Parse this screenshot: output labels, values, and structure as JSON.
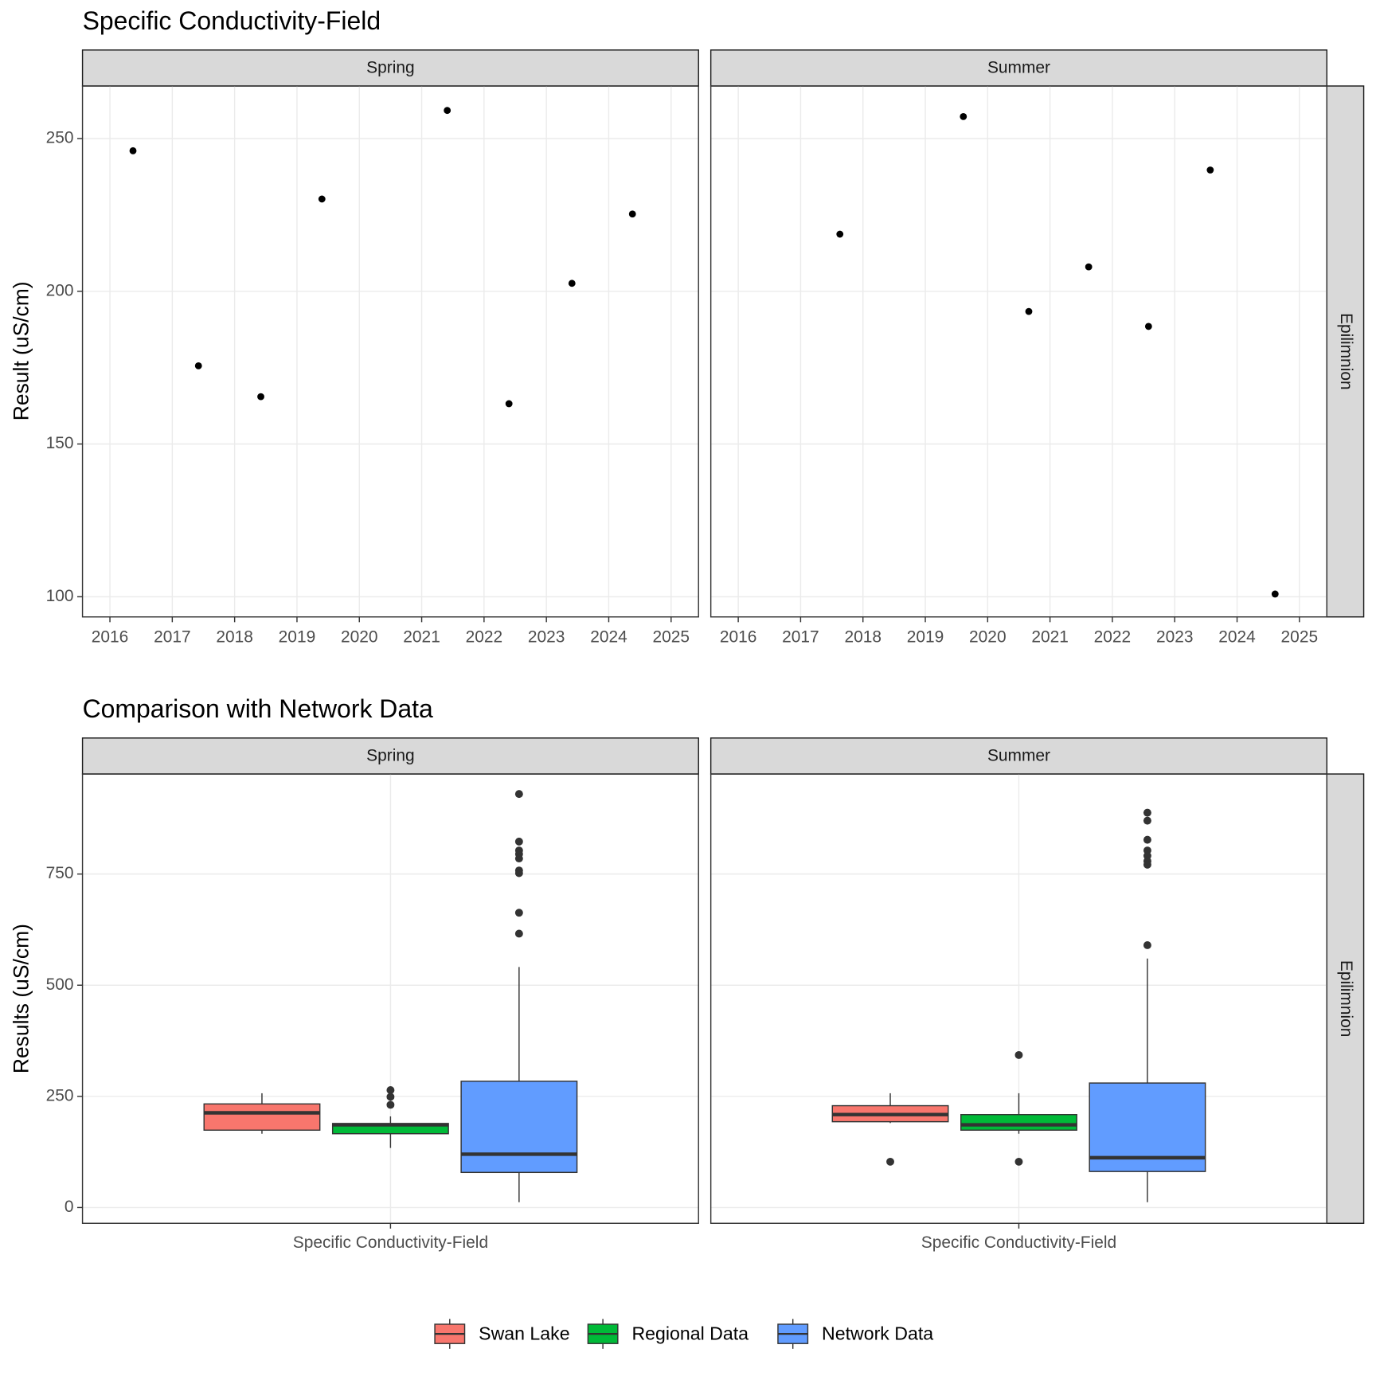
{
  "chart_data": [
    {
      "type": "scatter",
      "title": "Specific Conductivity-Field",
      "y_label": "Result (uS/cm)",
      "row_label": "Epilimnion",
      "xlim": [
        2015.56,
        2025.44
      ],
      "xticks": [
        2016,
        2017,
        2018,
        2019,
        2020,
        2021,
        2022,
        2023,
        2024,
        2025
      ],
      "ylim": [
        93.4,
        267.2
      ],
      "yticks": [
        100,
        150,
        200,
        250
      ],
      "grid": true,
      "color": "#000000",
      "facets": [
        {
          "name": "Spring",
          "x": [
            2016.37,
            2017.42,
            2018.42,
            2019.4,
            2021.41,
            2022.4,
            2023.41,
            2024.38
          ],
          "values": [
            246,
            175.6,
            165.5,
            230.2,
            259.2,
            163.2,
            202.6,
            225.3
          ]
        },
        {
          "name": "Summer",
          "x": [
            2017.63,
            2019.61,
            2020.66,
            2021.62,
            2022.58,
            2023.57,
            2024.61
          ],
          "values": [
            218.7,
            257.2,
            193.4,
            208,
            188.5,
            239.7,
            100.9
          ]
        }
      ]
    },
    {
      "type": "box",
      "title": "Comparison with Network Data",
      "y_label": "Results (uS/cm)",
      "row_label": "Epilimnion",
      "category": "Specific Conductivity-Field",
      "facets": [
        "Spring",
        "Summer"
      ],
      "ylim": [
        -35.5,
        975
      ],
      "yticks": [
        0,
        250,
        500,
        750
      ],
      "grid": true,
      "legend": "bottom",
      "series": [
        {
          "name": "Swan Lake",
          "color": "#F8766D",
          "boxes": [
            {
              "min": 166,
              "q1": 174,
              "median": 213,
              "q3": 233,
              "max": 257,
              "outliers": []
            },
            {
              "min": 190,
              "q1": 193,
              "median": 209,
              "q3": 229,
              "max": 257,
              "outliers": [
                103
              ]
            }
          ]
        },
        {
          "name": "Regional Data",
          "color": "#00BA38",
          "boxes": [
            {
              "min": 134,
              "q1": 166,
              "median": 186,
              "q3": 189,
              "max": 205,
              "outliers": [
                264,
                249,
                231
              ]
            },
            {
              "min": 166,
              "q1": 174,
              "median": 186,
              "q3": 209,
              "max": 257,
              "outliers": [
                343,
                103
              ]
            }
          ]
        },
        {
          "name": "Network Data",
          "color": "#619CFF",
          "boxes": [
            {
              "min": 12,
              "q1": 79,
              "median": 120,
              "q3": 284,
              "max": 541,
              "outliers": [
                930,
                823,
                803,
                795,
                785,
                758,
                752,
                663,
                616
              ]
            },
            {
              "min": 12,
              "q1": 81,
              "median": 112,
              "q3": 280,
              "max": 560,
              "outliers": [
                888,
                870,
                827,
                803,
                791,
                779,
                771,
                590
              ]
            }
          ]
        }
      ]
    }
  ]
}
